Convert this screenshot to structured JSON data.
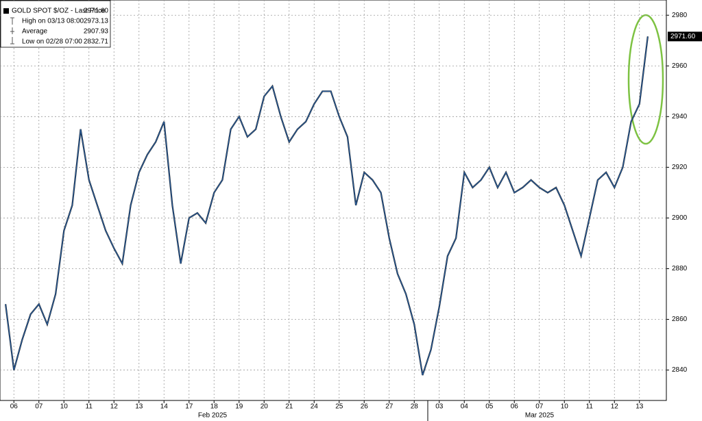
{
  "chart_data": {
    "type": "line",
    "categories": [
      null,
      "06",
      null,
      null,
      "07",
      null,
      null,
      "10",
      null,
      null,
      "11",
      null,
      null,
      "12",
      null,
      null,
      "13",
      null,
      null,
      "14",
      null,
      null,
      "17",
      null,
      null,
      "18",
      null,
      null,
      "19",
      null,
      null,
      "20",
      null,
      null,
      "21",
      null,
      null,
      "24",
      null,
      null,
      "25",
      null,
      null,
      "26",
      null,
      null,
      "27",
      null,
      null,
      "28",
      null,
      null,
      "03",
      null,
      null,
      "04",
      null,
      null,
      "05",
      null,
      null,
      "06",
      null,
      null,
      "07",
      null,
      null,
      "10",
      null,
      null,
      "11",
      null,
      null,
      "12",
      null,
      null,
      "13",
      null
    ],
    "series": [
      {
        "name": "GOLD SPOT $/OZ - Last Price",
        "color": "#2b5f9e",
        "values": [
          2866,
          2840,
          2852,
          2862,
          2866,
          2858,
          2870,
          2895,
          2905,
          2935,
          2915,
          2905,
          2895,
          2888,
          2882,
          2905,
          2918,
          2925,
          2930,
          2938,
          2905,
          2882,
          2900,
          2902,
          2898,
          2910,
          2915,
          2935,
          2940,
          2932,
          2935,
          2948,
          2952,
          2940,
          2930,
          2935,
          2938,
          2945,
          2950,
          2950,
          2940,
          2932,
          2905,
          2918,
          2915,
          2910,
          2892,
          2878,
          2870,
          2858,
          2838,
          2848,
          2865,
          2885,
          2892,
          2918,
          2912,
          2915,
          2920,
          2912,
          2918,
          2910,
          2912,
          2915,
          2912,
          2910,
          2912,
          2905,
          2895,
          2885,
          2900,
          2915,
          2918,
          2912,
          2920,
          2938,
          2945,
          2971.6
        ]
      }
    ],
    "month_labels": [
      "Feb 2025",
      "Mar 2025"
    ],
    "legend": {
      "last_price": {
        "value": 2971.6,
        "label": "2971.60"
      },
      "items": [
        {
          "label": "High on 03/13 08:00",
          "value": 2973.13
        },
        {
          "label": "Average",
          "value": 2907.93
        },
        {
          "label": "Low on 02/28 07:00",
          "value": 2832.71
        }
      ]
    },
    "ylim": [
      2828,
      2986
    ],
    "yticks": [
      2840,
      2860,
      2880,
      2900,
      2920,
      2940,
      2960,
      2980
    ],
    "grid": true
  }
}
